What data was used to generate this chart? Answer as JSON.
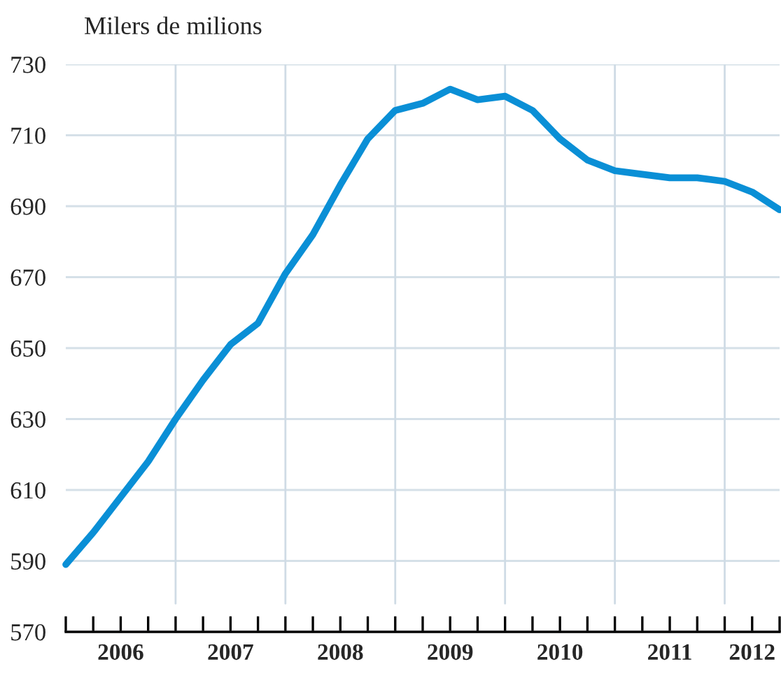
{
  "chart_data": {
    "type": "line",
    "title": "Milers de milions",
    "x": [
      2006,
      2006.25,
      2006.5,
      2006.75,
      2007,
      2007.25,
      2007.5,
      2007.75,
      2008,
      2008.25,
      2008.5,
      2008.75,
      2009,
      2009.25,
      2009.5,
      2009.75,
      2010,
      2010.25,
      2010.5,
      2010.75,
      2011,
      2011.25,
      2011.5,
      2011.75,
      2012,
      2012.25,
      2012.5
    ],
    "series": [
      {
        "color": "#0a8fd6",
        "values": [
          589,
          598,
          608,
          618,
          630,
          641,
          651,
          657,
          671,
          682,
          696,
          709,
          717,
          719,
          723,
          720,
          721,
          717,
          709,
          703,
          700,
          699,
          698,
          698,
          697,
          694,
          689
        ]
      }
    ],
    "xlim": [
      2006,
      2012.5
    ],
    "xticks": [
      {
        "value": 2006,
        "label": null
      },
      {
        "value": 2006.25,
        "label": null
      },
      {
        "value": 2006.5,
        "label": "2006"
      },
      {
        "value": 2006.75,
        "label": null
      },
      {
        "value": 2007,
        "label": null
      },
      {
        "value": 2007.25,
        "label": null
      },
      {
        "value": 2007.5,
        "label": "2007"
      },
      {
        "value": 2007.75,
        "label": null
      },
      {
        "value": 2008,
        "label": null
      },
      {
        "value": 2008.25,
        "label": null
      },
      {
        "value": 2008.5,
        "label": "2008"
      },
      {
        "value": 2008.75,
        "label": null
      },
      {
        "value": 2009,
        "label": null
      },
      {
        "value": 2009.25,
        "label": null
      },
      {
        "value": 2009.5,
        "label": "2009"
      },
      {
        "value": 2009.75,
        "label": null
      },
      {
        "value": 2010,
        "label": null
      },
      {
        "value": 2010.25,
        "label": null
      },
      {
        "value": 2010.5,
        "label": "2010"
      },
      {
        "value": 2010.75,
        "label": null
      },
      {
        "value": 2011,
        "label": null
      },
      {
        "value": 2011.25,
        "label": null
      },
      {
        "value": 2011.5,
        "label": "2011"
      },
      {
        "value": 2011.75,
        "label": null
      },
      {
        "value": 2012,
        "label": null
      },
      {
        "value": 2012.25,
        "label": "2012"
      },
      {
        "value": 2012.5,
        "label": null
      }
    ],
    "ylim": [
      570,
      730
    ],
    "yticks": [
      570,
      590,
      610,
      630,
      650,
      670,
      690,
      710,
      730
    ],
    "grid": "y",
    "ref_lines": [
      {
        "axis": "x",
        "value": 2007,
        "color": "#cfdbe5"
      },
      {
        "axis": "x",
        "value": 2008,
        "color": "#cfdbe5"
      },
      {
        "axis": "x",
        "value": 2009,
        "color": "#cfdbe5"
      },
      {
        "axis": "x",
        "value": 2010,
        "color": "#cfdbe5"
      },
      {
        "axis": "x",
        "value": 2011,
        "color": "#cfdbe5"
      },
      {
        "axis": "x",
        "value": 2012,
        "color": "#cfdbe5"
      }
    ],
    "marker": "none",
    "line_style": "solid"
  }
}
